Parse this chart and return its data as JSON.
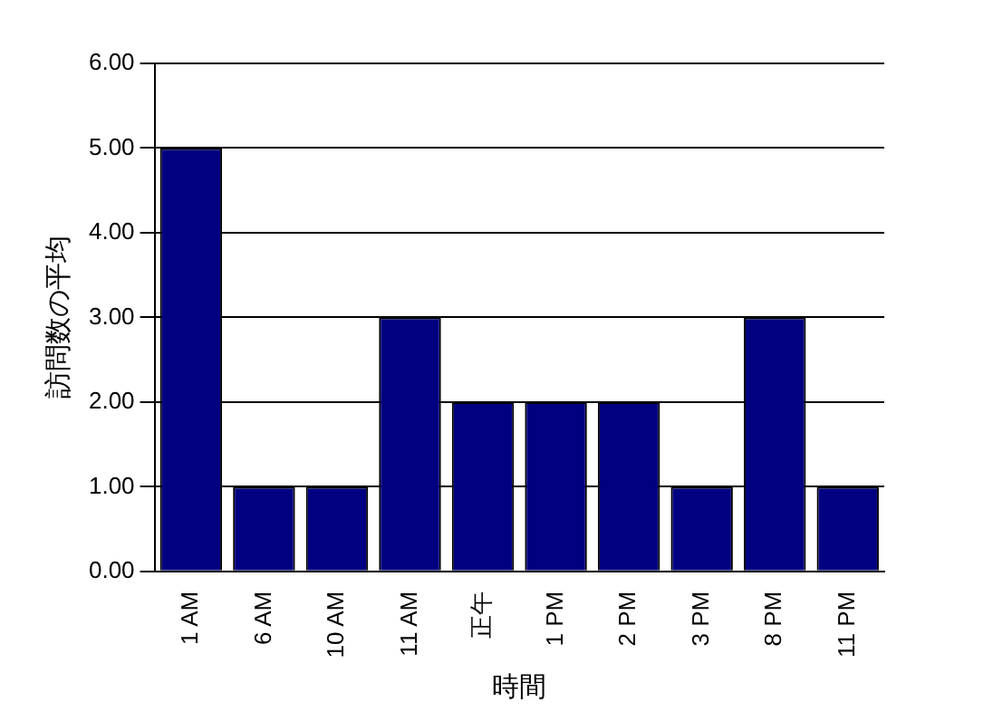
{
  "chart_data": {
    "type": "bar",
    "xlabel": "時間",
    "ylabel": "訪問数の平均",
    "categories": [
      "1 AM",
      "6 AM",
      "10 AM",
      "11 AM",
      "正午",
      "1 PM",
      "2 PM",
      "3 PM",
      "8 PM",
      "11 PM"
    ],
    "values": [
      5,
      1,
      1,
      3,
      2,
      2,
      2,
      1,
      3,
      1
    ],
    "color": "#000080",
    "ylim": [
      0,
      6
    ],
    "yticks": [
      {
        "value": 0,
        "label": "0.00"
      },
      {
        "value": 1,
        "label": "1.00"
      },
      {
        "value": 2,
        "label": "2.00"
      },
      {
        "value": 3,
        "label": "3.00"
      },
      {
        "value": 4,
        "label": "4.00"
      },
      {
        "value": 5,
        "label": "5.00"
      },
      {
        "value": 6,
        "label": "6.00"
      }
    ],
    "grid": "y",
    "legend": false
  }
}
